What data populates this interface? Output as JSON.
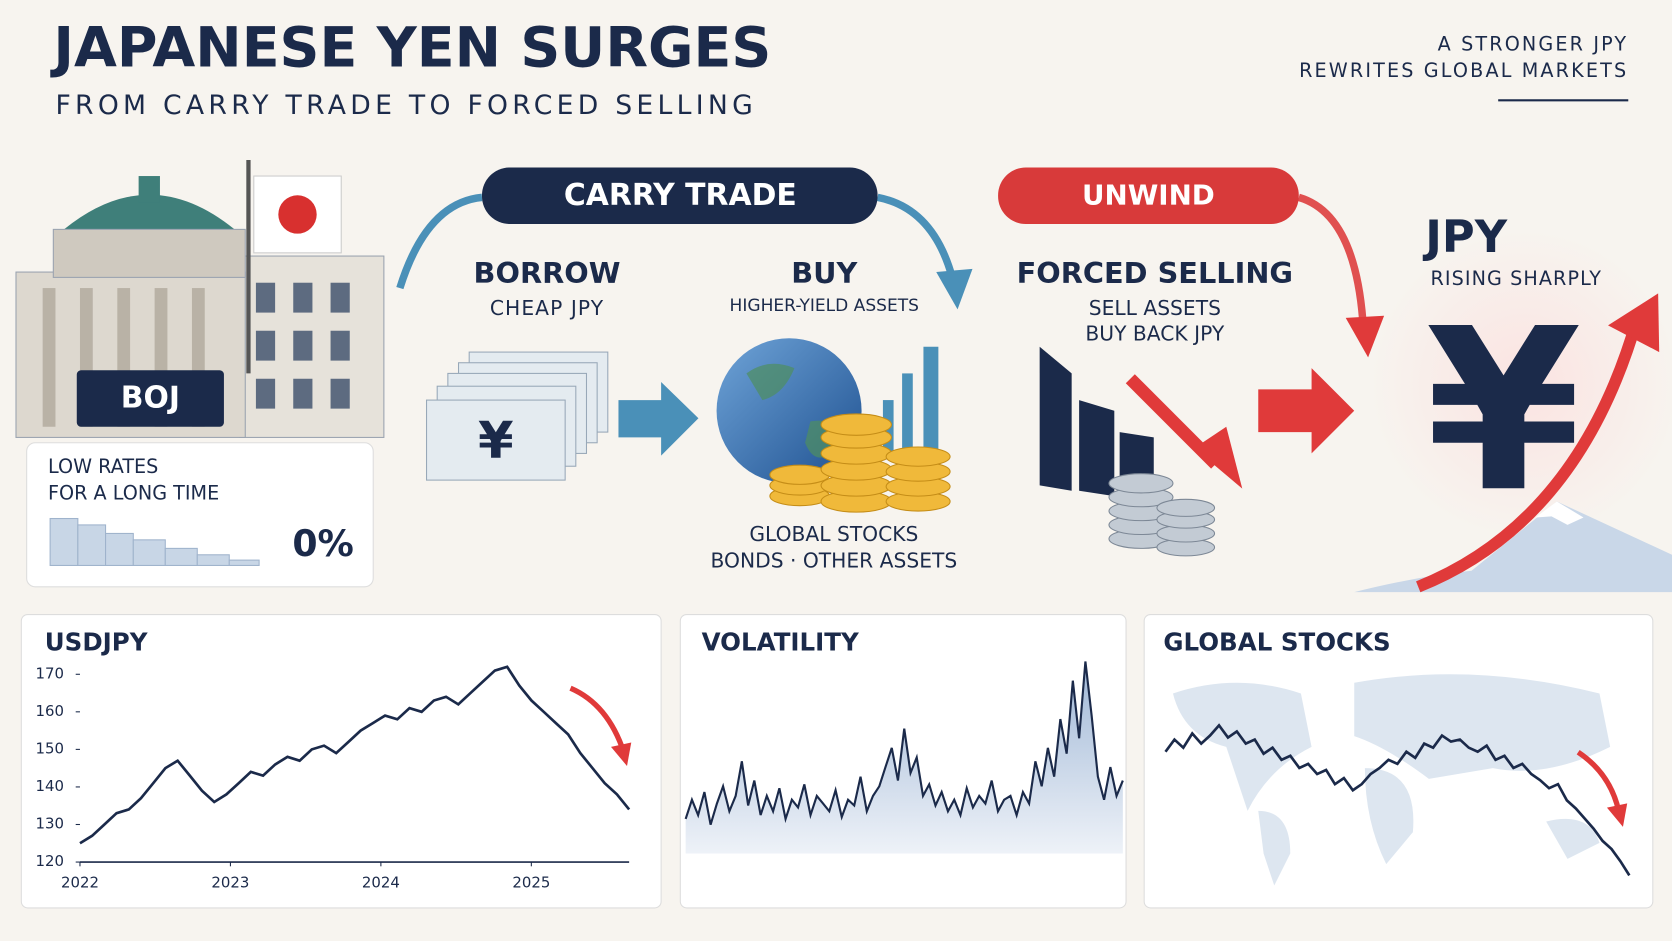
{
  "header": {
    "title": "JAPANESE YEN SURGES",
    "subtitle": "FROM CARRY TRADE TO FORCED SELLING",
    "tagline": [
      "A STRONGER JPY",
      "REWRITES GLOBAL MARKETS"
    ]
  },
  "boj": {
    "label": "BOJ",
    "note": [
      "LOW RATES",
      "FOR A LONG TIME"
    ],
    "rate": "0%"
  },
  "carry_trade": {
    "label": "CARRY TRADE",
    "borrow": {
      "title": "BORROW",
      "note": "CHEAP JPY"
    },
    "buy": {
      "title": "BUY",
      "note": "HIGHER-YIELD ASSETS"
    },
    "assets": [
      "GLOBAL STOCKS",
      "BONDS · OTHER ASSETS"
    ]
  },
  "unwind": {
    "label": "UNWIND",
    "title": "FORCED SELLING",
    "note": [
      "SELL ASSETS",
      "BUY BACK JPY"
    ]
  },
  "jpy": {
    "title": "JPY",
    "note": "RISING SHARPLY",
    "symbol": "¥"
  },
  "chart_data": [
    {
      "type": "line",
      "title": "USDJPY",
      "color": "#1b2a4a",
      "xlim": [
        2022,
        2025.65
      ],
      "xticks": [
        2022,
        2023,
        2024,
        2025
      ],
      "ylim": [
        120,
        170
      ],
      "yticks": [
        120,
        130,
        140,
        150,
        160,
        170
      ],
      "values": [
        125,
        127,
        130,
        133,
        134,
        137,
        141,
        145,
        147,
        143,
        139,
        136,
        138,
        141,
        144,
        143,
        146,
        148,
        147,
        150,
        151,
        149,
        152,
        155,
        157,
        159,
        158,
        161,
        160,
        163,
        164,
        162,
        165,
        168,
        171,
        172,
        167,
        163,
        160,
        157,
        154,
        149,
        145,
        141,
        138,
        134
      ]
    },
    {
      "type": "area",
      "title": "VOLATILITY",
      "color": "#1b2a4a",
      "ylim": [
        0,
        100
      ],
      "values": [
        18,
        28,
        20,
        32,
        15,
        26,
        35,
        22,
        30,
        48,
        25,
        38,
        20,
        30,
        22,
        34,
        18,
        28,
        24,
        36,
        20,
        30,
        26,
        22,
        33,
        19,
        28,
        25,
        40,
        22,
        30,
        35,
        45,
        55,
        38,
        65,
        42,
        50,
        30,
        36,
        25,
        32,
        22,
        28,
        20,
        34,
        24,
        30,
        26,
        38,
        22,
        28,
        30,
        20,
        32,
        26,
        48,
        35,
        55,
        40,
        70,
        52,
        90,
        60,
        100,
        72,
        40,
        28,
        45,
        30,
        38
      ]
    },
    {
      "type": "line",
      "title": "GLOBAL STOCKS",
      "color": "#1b2a4a",
      "ylim": [
        0,
        100
      ],
      "values": [
        66,
        72,
        68,
        75,
        70,
        74,
        79,
        73,
        76,
        70,
        72,
        65,
        68,
        62,
        64,
        58,
        60,
        55,
        57,
        50,
        53,
        47,
        50,
        55,
        58,
        62,
        60,
        66,
        63,
        70,
        68,
        74,
        71,
        72,
        68,
        66,
        69,
        62,
        64,
        58,
        60,
        55,
        52,
        48,
        50,
        42,
        38,
        33,
        28,
        22,
        18,
        12,
        5
      ]
    }
  ]
}
